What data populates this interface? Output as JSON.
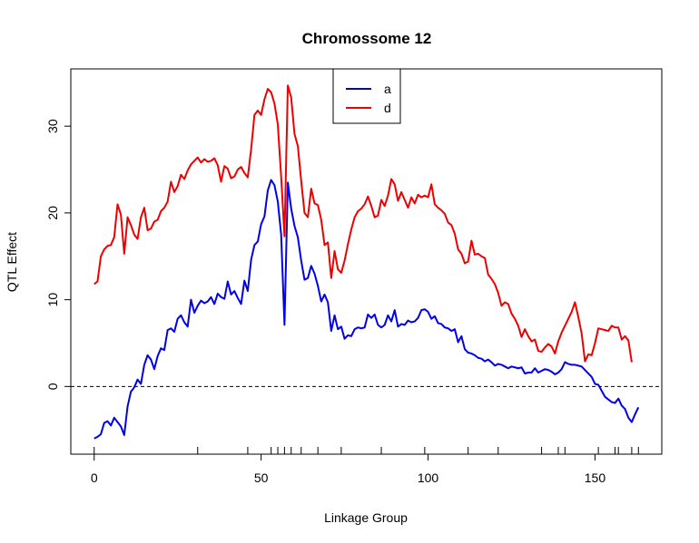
{
  "chart_data": {
    "type": "line",
    "title": "Chromossome 12",
    "xlabel": "Linkage Group",
    "ylabel": "QTL Effect",
    "xlim": [
      -7,
      170
    ],
    "ylim": [
      -7.8,
      36.6
    ],
    "xticks": [
      0,
      50,
      100,
      150
    ],
    "yticks": [
      0,
      10,
      20,
      30
    ],
    "reference_line": {
      "y": 0,
      "style": "dashed"
    },
    "rug": [
      0,
      31,
      46,
      53,
      55,
      57,
      59,
      62,
      67,
      74,
      86,
      99,
      112,
      121,
      134,
      139,
      141,
      151,
      156,
      157,
      161,
      163
    ],
    "legend": {
      "position": "top-center",
      "entries": [
        "a",
        "d"
      ]
    },
    "grid": false,
    "series": [
      {
        "name": "a",
        "color": "#0000ee",
        "points": [
          [
            0,
            -6
          ],
          [
            1,
            -5.8
          ],
          [
            2,
            -5.5
          ],
          [
            3,
            -4.2
          ],
          [
            4,
            -4
          ],
          [
            5,
            -4.5
          ],
          [
            6,
            -3.6
          ],
          [
            7,
            -4.1
          ],
          [
            8,
            -4.6
          ],
          [
            9,
            -5.6
          ],
          [
            10,
            -2.3
          ],
          [
            11,
            -0.6
          ],
          [
            12,
            -0.1
          ],
          [
            13,
            0.8
          ],
          [
            14,
            0.3
          ],
          [
            15,
            2.5
          ],
          [
            16,
            3.6
          ],
          [
            17,
            3.1
          ],
          [
            18,
            2
          ],
          [
            19,
            3.5
          ],
          [
            20,
            4.4
          ],
          [
            21,
            4.2
          ],
          [
            22,
            6.5
          ],
          [
            23,
            6.7
          ],
          [
            24,
            6.3
          ],
          [
            25,
            7.8
          ],
          [
            26,
            8.2
          ],
          [
            27,
            7.4
          ],
          [
            28,
            6.9
          ],
          [
            29,
            10
          ],
          [
            30,
            8.5
          ],
          [
            31,
            9.3
          ],
          [
            32,
            9.9
          ],
          [
            33,
            9.6
          ],
          [
            34,
            9.8
          ],
          [
            35,
            10.3
          ],
          [
            36,
            9.5
          ],
          [
            37,
            10.7
          ],
          [
            38,
            10.3
          ],
          [
            39,
            10.1
          ],
          [
            40,
            12.1
          ],
          [
            41,
            10.6
          ],
          [
            42,
            11
          ],
          [
            43,
            10.2
          ],
          [
            44,
            9.5
          ],
          [
            45,
            12.2
          ],
          [
            46,
            11
          ],
          [
            47,
            14.6
          ],
          [
            48,
            16.3
          ],
          [
            49,
            16.7
          ],
          [
            50,
            18.7
          ],
          [
            51,
            19.6
          ],
          [
            52,
            22.6
          ],
          [
            53,
            23.8
          ],
          [
            54,
            23.2
          ],
          [
            55,
            21.3
          ],
          [
            56,
            17.5
          ],
          [
            57,
            7.1
          ],
          [
            58,
            23.5
          ],
          [
            59,
            20.5
          ],
          [
            60,
            18.5
          ],
          [
            61,
            17.2
          ],
          [
            62,
            14.5
          ],
          [
            63,
            12.3
          ],
          [
            64,
            12.5
          ],
          [
            65,
            13.9
          ],
          [
            66,
            13
          ],
          [
            67,
            11.6
          ],
          [
            68,
            9.8
          ],
          [
            69,
            10.6
          ],
          [
            70,
            9.7
          ],
          [
            71,
            6.4
          ],
          [
            72,
            8.2
          ],
          [
            73,
            6.6
          ],
          [
            74,
            6.9
          ],
          [
            75,
            5.5
          ],
          [
            76,
            5.9
          ],
          [
            77,
            5.8
          ],
          [
            78,
            6.6
          ],
          [
            79,
            6.8
          ],
          [
            80,
            6.7
          ],
          [
            81,
            6.8
          ],
          [
            82,
            8.3
          ],
          [
            83,
            7.9
          ],
          [
            84,
            8.3
          ],
          [
            85,
            7.1
          ],
          [
            86,
            6.8
          ],
          [
            87,
            7.1
          ],
          [
            88,
            8.2
          ],
          [
            89,
            7.5
          ],
          [
            90,
            8.8
          ],
          [
            91,
            6.9
          ],
          [
            92,
            7.2
          ],
          [
            93,
            7.1
          ],
          [
            94,
            7.6
          ],
          [
            95,
            7.4
          ],
          [
            96,
            7.5
          ],
          [
            97,
            7.9
          ],
          [
            98,
            8.8
          ],
          [
            99,
            8.9
          ],
          [
            100,
            8.6
          ],
          [
            101,
            7.8
          ],
          [
            102,
            8.1
          ],
          [
            103,
            7.3
          ],
          [
            104,
            7.2
          ],
          [
            105,
            6.8
          ],
          [
            106,
            6.7
          ],
          [
            107,
            6.4
          ],
          [
            108,
            6.6
          ],
          [
            109,
            5.1
          ],
          [
            110,
            5.8
          ],
          [
            111,
            4.3
          ],
          [
            112,
            3.9
          ],
          [
            113,
            3.8
          ],
          [
            114,
            3.6
          ],
          [
            115,
            3.3
          ],
          [
            116,
            3.2
          ],
          [
            117,
            2.9
          ],
          [
            118,
            3.1
          ],
          [
            119,
            2.8
          ],
          [
            120,
            2.4
          ],
          [
            121,
            2.6
          ],
          [
            122,
            2.5
          ],
          [
            123,
            2.3
          ],
          [
            124,
            2.1
          ],
          [
            125,
            2.3
          ],
          [
            126,
            2.2
          ],
          [
            127,
            2.1
          ],
          [
            128,
            2.2
          ],
          [
            129,
            1.5
          ],
          [
            130,
            1.6
          ],
          [
            131,
            1.6
          ],
          [
            132,
            2.1
          ],
          [
            133,
            1.6
          ],
          [
            134,
            1.8
          ],
          [
            135,
            2
          ],
          [
            136,
            1.9
          ],
          [
            137,
            1.7
          ],
          [
            138,
            1.4
          ],
          [
            139,
            1.6
          ],
          [
            140,
            2
          ],
          [
            141,
            2.8
          ],
          [
            142,
            2.6
          ],
          [
            143,
            2.5
          ],
          [
            144,
            2.5
          ],
          [
            145,
            2.4
          ],
          [
            146,
            2.3
          ],
          [
            147,
            1.9
          ],
          [
            148,
            1.5
          ],
          [
            149,
            1.1
          ],
          [
            150,
            0.3
          ],
          [
            151,
            0.2
          ],
          [
            152,
            -0.5
          ],
          [
            153,
            -1.2
          ],
          [
            154,
            -1.5
          ],
          [
            155,
            -1.8
          ],
          [
            156,
            -1.9
          ],
          [
            157,
            -1.4
          ],
          [
            158,
            -2.2
          ],
          [
            159,
            -2.6
          ],
          [
            160,
            -3.6
          ],
          [
            161,
            -4.1
          ],
          [
            162,
            -3.2
          ],
          [
            163,
            -2.4
          ]
        ]
      },
      {
        "name": "d",
        "color": "#ee0000",
        "points": [
          [
            0,
            11.8
          ],
          [
            1,
            12.1
          ],
          [
            2,
            15
          ],
          [
            3,
            15.8
          ],
          [
            4,
            16.2
          ],
          [
            5,
            16.3
          ],
          [
            6,
            17.2
          ],
          [
            7,
            21
          ],
          [
            8,
            19.8
          ],
          [
            9,
            15.3
          ],
          [
            10,
            19.5
          ],
          [
            11,
            18.6
          ],
          [
            12,
            17.5
          ],
          [
            13,
            17
          ],
          [
            14,
            19.5
          ],
          [
            15,
            20.6
          ],
          [
            16,
            18
          ],
          [
            17,
            18.2
          ],
          [
            18,
            19
          ],
          [
            19,
            19.2
          ],
          [
            20,
            20.2
          ],
          [
            21,
            20.6
          ],
          [
            22,
            21.3
          ],
          [
            23,
            23.6
          ],
          [
            24,
            22.4
          ],
          [
            25,
            23.1
          ],
          [
            26,
            24.4
          ],
          [
            27,
            23.9
          ],
          [
            28,
            24.9
          ],
          [
            29,
            25.6
          ],
          [
            30,
            26
          ],
          [
            31,
            26.4
          ],
          [
            32,
            25.8
          ],
          [
            33,
            26.2
          ],
          [
            34,
            25.9
          ],
          [
            35,
            26
          ],
          [
            36,
            26.3
          ],
          [
            37,
            25.5
          ],
          [
            38,
            23.6
          ],
          [
            39,
            25.4
          ],
          [
            40,
            25.1
          ],
          [
            41,
            24
          ],
          [
            42,
            24.2
          ],
          [
            43,
            25
          ],
          [
            44,
            25.3
          ],
          [
            45,
            24.6
          ],
          [
            46,
            24.1
          ],
          [
            47,
            27.3
          ],
          [
            48,
            31.3
          ],
          [
            49,
            31.8
          ],
          [
            50,
            31.3
          ],
          [
            51,
            33.1
          ],
          [
            52,
            34.3
          ],
          [
            53,
            33.9
          ],
          [
            54,
            32.6
          ],
          [
            55,
            30.2
          ],
          [
            56,
            24.2
          ],
          [
            57,
            17.3
          ],
          [
            58,
            34.7
          ],
          [
            59,
            33.3
          ],
          [
            60,
            29.1
          ],
          [
            61,
            27.7
          ],
          [
            62,
            23.7
          ],
          [
            63,
            20
          ],
          [
            64,
            19.5
          ],
          [
            65,
            22.8
          ],
          [
            66,
            21.1
          ],
          [
            67,
            20.9
          ],
          [
            68,
            19.2
          ],
          [
            69,
            16.3
          ],
          [
            70,
            16.6
          ],
          [
            71,
            12.5
          ],
          [
            72,
            15.6
          ],
          [
            73,
            13.5
          ],
          [
            74,
            13.1
          ],
          [
            75,
            14.5
          ],
          [
            76,
            16.4
          ],
          [
            77,
            18.1
          ],
          [
            78,
            19.5
          ],
          [
            79,
            20.2
          ],
          [
            80,
            20.5
          ],
          [
            81,
            21
          ],
          [
            82,
            21.9
          ],
          [
            83,
            20.8
          ],
          [
            84,
            19.5
          ],
          [
            85,
            19.7
          ],
          [
            86,
            21.5
          ],
          [
            87,
            20.8
          ],
          [
            88,
            22
          ],
          [
            89,
            23.9
          ],
          [
            90,
            23.3
          ],
          [
            91,
            21.4
          ],
          [
            92,
            22.4
          ],
          [
            93,
            21.5
          ],
          [
            94,
            20.6
          ],
          [
            95,
            21.8
          ],
          [
            96,
            21.1
          ],
          [
            97,
            22.1
          ],
          [
            98,
            21.8
          ],
          [
            99,
            22
          ],
          [
            100,
            21.8
          ],
          [
            101,
            23.3
          ],
          [
            102,
            21
          ],
          [
            103,
            20.6
          ],
          [
            104,
            20.3
          ],
          [
            105,
            19.9
          ],
          [
            106,
            18.9
          ],
          [
            107,
            18.6
          ],
          [
            108,
            17.6
          ],
          [
            109,
            15.8
          ],
          [
            110,
            15.3
          ],
          [
            111,
            14.2
          ],
          [
            112,
            14.4
          ],
          [
            113,
            16.8
          ],
          [
            114,
            15.2
          ],
          [
            115,
            15.3
          ],
          [
            116,
            15
          ],
          [
            117,
            14.8
          ],
          [
            118,
            12.9
          ],
          [
            119,
            12.4
          ],
          [
            120,
            11.8
          ],
          [
            121,
            10.8
          ],
          [
            122,
            9.3
          ],
          [
            123,
            9.7
          ],
          [
            124,
            9.5
          ],
          [
            125,
            8.4
          ],
          [
            126,
            7.8
          ],
          [
            127,
            7
          ],
          [
            128,
            5.7
          ],
          [
            129,
            6.6
          ],
          [
            130,
            5.8
          ],
          [
            131,
            5.2
          ],
          [
            132,
            5.4
          ],
          [
            133,
            4.1
          ],
          [
            134,
            4
          ],
          [
            135,
            4.5
          ],
          [
            136,
            4.9
          ],
          [
            137,
            4.6
          ],
          [
            138,
            3.8
          ],
          [
            139,
            5.2
          ],
          [
            140,
            6.2
          ],
          [
            141,
            7
          ],
          [
            142,
            7.8
          ],
          [
            143,
            8.6
          ],
          [
            144,
            9.7
          ],
          [
            145,
            8
          ],
          [
            146,
            6.1
          ],
          [
            147,
            2.9
          ],
          [
            148,
            3.7
          ],
          [
            149,
            3.6
          ],
          [
            150,
            5
          ],
          [
            151,
            6.7
          ],
          [
            152,
            6.6
          ],
          [
            153,
            6.5
          ],
          [
            154,
            6.4
          ],
          [
            155,
            7
          ],
          [
            156,
            6.8
          ],
          [
            157,
            6.8
          ],
          [
            158,
            5.4
          ],
          [
            159,
            5.8
          ],
          [
            160,
            5.3
          ],
          [
            161,
            2.8
          ]
        ]
      }
    ]
  }
}
